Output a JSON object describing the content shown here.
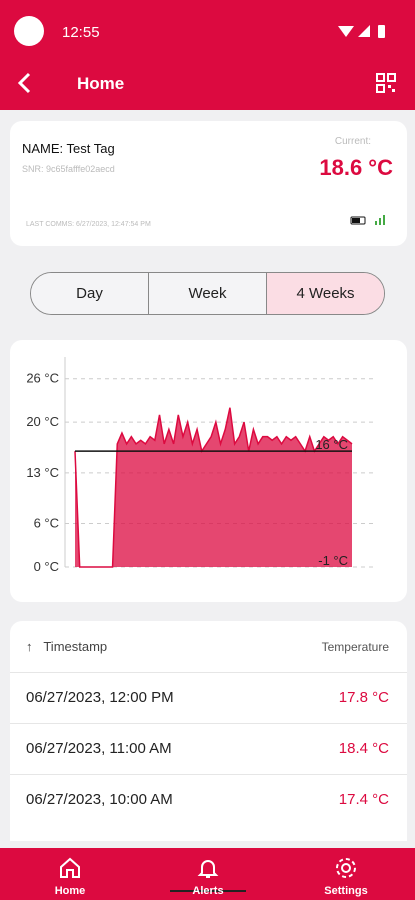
{
  "status_bar": {
    "time": "12:55"
  },
  "app_bar": {
    "title": "Home"
  },
  "tag_card": {
    "name": "NAME: Test Tag",
    "snr": "SNR: 9c65fafffe02aecd",
    "current_label": "Current:",
    "current_value": "18.6 °C",
    "last_comms": "LAST COMMS: 6/27/2023, 12:47:54 PM"
  },
  "tabs": {
    "items": [
      "Day",
      "Week",
      "4 Weeks"
    ],
    "selected": 2
  },
  "chart_data": {
    "type": "area",
    "color": "#dc0a40",
    "values": [
      16,
      0,
      0,
      0,
      0,
      0,
      0,
      0,
      0,
      17,
      18.5,
      17,
      18,
      17,
      17.5,
      17,
      18,
      17.5,
      21,
      17,
      19,
      17,
      21,
      18,
      20,
      17,
      19,
      16,
      17,
      18,
      20,
      17,
      19,
      22,
      17,
      18,
      20,
      16,
      19,
      17,
      18,
      18,
      17.5,
      18,
      17,
      18,
      17.5,
      18,
      17,
      16,
      18,
      16,
      17,
      18,
      17.5,
      18,
      17,
      18,
      17.5,
      17
    ],
    "ylim": [
      0,
      29
    ],
    "yticks": [
      {
        "value": 0,
        "label": "0 °C"
      },
      {
        "value": 6,
        "label": "6 °C"
      },
      {
        "value": 13,
        "label": "13 °C"
      },
      {
        "value": 20,
        "label": "20 °C"
      },
      {
        "value": 26,
        "label": "26 °C"
      }
    ],
    "grid": true,
    "thresholds": [
      {
        "value": 16,
        "label": "16 °C"
      },
      {
        "value": -1,
        "label": "-1 °C"
      }
    ]
  },
  "table": {
    "header": [
      "Timestamp",
      "Temperature"
    ],
    "rows": [
      [
        "06/27/2023, 12:00 PM",
        "17.8 °C"
      ],
      [
        "06/27/2023, 11:00 AM",
        "18.4 °C"
      ],
      [
        "06/27/2023, 10:00 AM",
        "17.4 °C"
      ]
    ]
  },
  "nav": [
    "Home",
    "Alerts",
    "Settings"
  ]
}
